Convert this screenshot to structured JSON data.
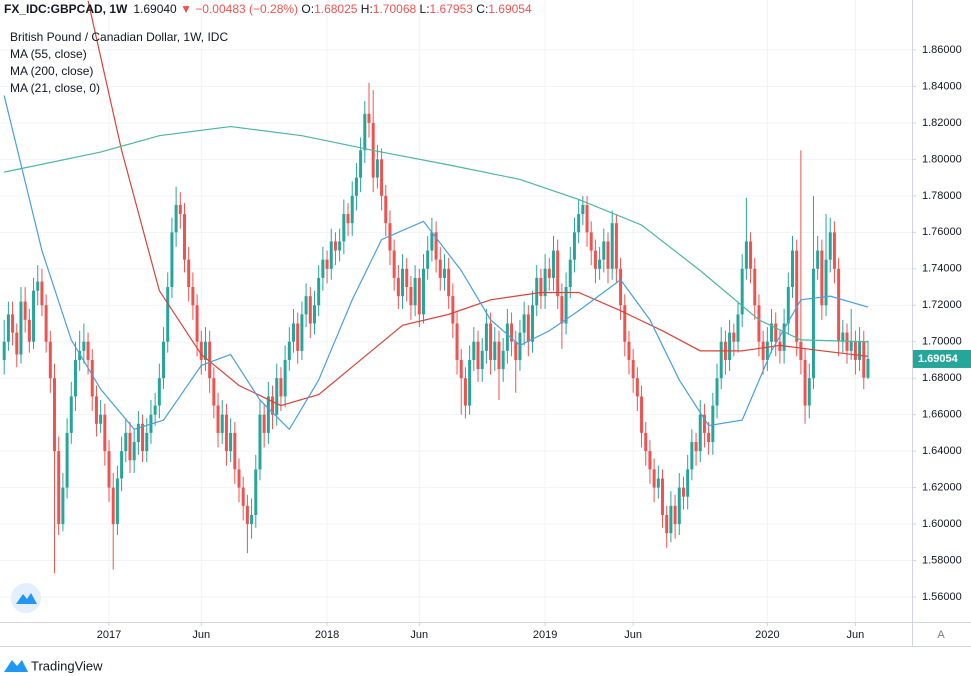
{
  "header": {
    "symbol": "FX_IDC:GBPCAD, 1W",
    "price": "1.69040",
    "change": "▼ −0.00483 (−0.28%)",
    "labels": [
      "O:",
      "H:",
      "L:",
      "C:"
    ],
    "axis_button": "A"
  },
  "footer": {
    "brand": "TradingView"
  },
  "chart_data": {
    "type": "candlestick",
    "title": "British Pound / Canadian Dollar, 1W, IDC",
    "up_color": "#26a69a",
    "down_color": "#ef5350",
    "xlim": [
      -1,
      216.5
    ],
    "xticks": [
      {
        "value": 25,
        "label": "2017"
      },
      {
        "value": 47,
        "label": "Jun"
      },
      {
        "value": 77,
        "label": "2018"
      },
      {
        "value": 99,
        "label": "Jun"
      },
      {
        "value": 129,
        "label": "2019"
      },
      {
        "value": 150,
        "label": "Jun"
      },
      {
        "value": 182,
        "label": "2020"
      },
      {
        "value": 203,
        "label": "Jun"
      }
    ],
    "ylim": [
      1.5463,
      1.8874
    ],
    "yticks": [
      {
        "value": 1.56,
        "label": "1.56000"
      },
      {
        "value": 1.58,
        "label": "1.58000"
      },
      {
        "value": 1.6,
        "label": "1.60000"
      },
      {
        "value": 1.62,
        "label": "1.62000"
      },
      {
        "value": 1.64,
        "label": "1.64000"
      },
      {
        "value": 1.66,
        "label": "1.66000"
      },
      {
        "value": 1.68,
        "label": "1.68000"
      },
      {
        "value": 1.7,
        "label": "1.70000"
      },
      {
        "value": 1.72,
        "label": "1.72000"
      },
      {
        "value": 1.74,
        "label": "1.74000"
      },
      {
        "value": 1.76,
        "label": "1.76000"
      },
      {
        "value": 1.78,
        "label": "1.78000"
      },
      {
        "value": 1.8,
        "label": "1.80000"
      },
      {
        "value": 1.82,
        "label": "1.82000"
      },
      {
        "value": 1.84,
        "label": "1.84000"
      },
      {
        "value": 1.86,
        "label": "1.86000"
      }
    ],
    "grid": true,
    "ohlc": [
      [
        1.69,
        1.712,
        1.682,
        1.7
      ],
      [
        1.7,
        1.722,
        1.695,
        1.715
      ],
      [
        1.715,
        1.722,
        1.698,
        1.705
      ],
      [
        1.705,
        1.71,
        1.686,
        1.693
      ],
      [
        1.693,
        1.73,
        1.688,
        1.722
      ],
      [
        1.722,
        1.73,
        1.705,
        1.712
      ],
      [
        1.712,
        1.718,
        1.694,
        1.7
      ],
      [
        1.7,
        1.735,
        1.696,
        1.728
      ],
      [
        1.728,
        1.742,
        1.72,
        1.733
      ],
      [
        1.733,
        1.74,
        1.714,
        1.72
      ],
      [
        1.72,
        1.726,
        1.694,
        1.7
      ],
      [
        1.7,
        1.706,
        1.672,
        1.68
      ],
      [
        1.68,
        1.688,
        1.573,
        1.64
      ],
      [
        1.64,
        1.648,
        1.594,
        1.6
      ],
      [
        1.6,
        1.628,
        1.596,
        1.62
      ],
      [
        1.62,
        1.658,
        1.614,
        1.65
      ],
      [
        1.65,
        1.678,
        1.644,
        1.67
      ],
      [
        1.67,
        1.7,
        1.662,
        1.69
      ],
      [
        1.69,
        1.706,
        1.684,
        1.695
      ],
      [
        1.695,
        1.71,
        1.688,
        1.7
      ],
      [
        1.7,
        1.705,
        1.682,
        1.69
      ],
      [
        1.69,
        1.696,
        1.662,
        1.67
      ],
      [
        1.67,
        1.676,
        1.648,
        1.655
      ],
      [
        1.655,
        1.668,
        1.65,
        1.66
      ],
      [
        1.66,
        1.666,
        1.632,
        1.64
      ],
      [
        1.64,
        1.646,
        1.612,
        1.62
      ],
      [
        1.62,
        1.628,
        1.575,
        1.6
      ],
      [
        1.6,
        1.632,
        1.594,
        1.625
      ],
      [
        1.625,
        1.648,
        1.618,
        1.64
      ],
      [
        1.64,
        1.658,
        1.634,
        1.65
      ],
      [
        1.65,
        1.656,
        1.628,
        1.635
      ],
      [
        1.635,
        1.652,
        1.628,
        1.645
      ],
      [
        1.645,
        1.662,
        1.638,
        1.655
      ],
      [
        1.655,
        1.66,
        1.634,
        1.64
      ],
      [
        1.64,
        1.658,
        1.634,
        1.65
      ],
      [
        1.65,
        1.668,
        1.644,
        1.66
      ],
      [
        1.66,
        1.672,
        1.654,
        1.665
      ],
      [
        1.665,
        1.688,
        1.658,
        1.68
      ],
      [
        1.68,
        1.708,
        1.674,
        1.7
      ],
      [
        1.7,
        1.738,
        1.694,
        1.73
      ],
      [
        1.73,
        1.768,
        1.724,
        1.76
      ],
      [
        1.76,
        1.785,
        1.752,
        1.775
      ],
      [
        1.775,
        1.782,
        1.762,
        1.77
      ],
      [
        1.77,
        1.776,
        1.738,
        1.745
      ],
      [
        1.745,
        1.752,
        1.722,
        1.73
      ],
      [
        1.73,
        1.738,
        1.712,
        1.72
      ],
      [
        1.72,
        1.726,
        1.692,
        1.7
      ],
      [
        1.7,
        1.706,
        1.682,
        1.69
      ],
      [
        1.69,
        1.708,
        1.684,
        1.7
      ],
      [
        1.7,
        1.706,
        1.672,
        1.68
      ],
      [
        1.68,
        1.686,
        1.658,
        1.665
      ],
      [
        1.665,
        1.672,
        1.642,
        1.65
      ],
      [
        1.65,
        1.668,
        1.644,
        1.66
      ],
      [
        1.66,
        1.666,
        1.632,
        1.64
      ],
      [
        1.64,
        1.658,
        1.634,
        1.65
      ],
      [
        1.65,
        1.656,
        1.622,
        1.63
      ],
      [
        1.63,
        1.636,
        1.612,
        1.62
      ],
      [
        1.62,
        1.626,
        1.602,
        1.61
      ],
      [
        1.61,
        1.616,
        1.584,
        1.6
      ],
      [
        1.6,
        1.614,
        1.592,
        1.605
      ],
      [
        1.605,
        1.638,
        1.598,
        1.63
      ],
      [
        1.63,
        1.668,
        1.624,
        1.66
      ],
      [
        1.66,
        1.666,
        1.642,
        1.65
      ],
      [
        1.65,
        1.678,
        1.644,
        1.67
      ],
      [
        1.67,
        1.676,
        1.652,
        1.66
      ],
      [
        1.66,
        1.688,
        1.654,
        1.68
      ],
      [
        1.68,
        1.686,
        1.662,
        1.67
      ],
      [
        1.67,
        1.698,
        1.664,
        1.69
      ],
      [
        1.69,
        1.708,
        1.684,
        1.7
      ],
      [
        1.7,
        1.718,
        1.694,
        1.71
      ],
      [
        1.71,
        1.716,
        1.688,
        1.695
      ],
      [
        1.695,
        1.722,
        1.69,
        1.715
      ],
      [
        1.715,
        1.732,
        1.708,
        1.725
      ],
      [
        1.725,
        1.73,
        1.702,
        1.71
      ],
      [
        1.71,
        1.728,
        1.704,
        1.72
      ],
      [
        1.72,
        1.742,
        1.714,
        1.735
      ],
      [
        1.735,
        1.752,
        1.728,
        1.745
      ],
      [
        1.745,
        1.75,
        1.732,
        1.74
      ],
      [
        1.74,
        1.762,
        1.734,
        1.755
      ],
      [
        1.755,
        1.76,
        1.742,
        1.75
      ],
      [
        1.75,
        1.762,
        1.744,
        1.755
      ],
      [
        1.755,
        1.778,
        1.748,
        1.77
      ],
      [
        1.77,
        1.776,
        1.758,
        1.765
      ],
      [
        1.765,
        1.788,
        1.758,
        1.78
      ],
      [
        1.78,
        1.798,
        1.772,
        1.79
      ],
      [
        1.79,
        1.812,
        1.782,
        1.805
      ],
      [
        1.805,
        1.832,
        1.798,
        1.825
      ],
      [
        1.825,
        1.842,
        1.812,
        1.82
      ],
      [
        1.82,
        1.838,
        1.782,
        1.79
      ],
      [
        1.79,
        1.808,
        1.784,
        1.8
      ],
      [
        1.8,
        1.806,
        1.772,
        1.78
      ],
      [
        1.78,
        1.786,
        1.758,
        1.765
      ],
      [
        1.765,
        1.772,
        1.742,
        1.75
      ],
      [
        1.75,
        1.756,
        1.728,
        1.735
      ],
      [
        1.735,
        1.742,
        1.718,
        1.725
      ],
      [
        1.725,
        1.748,
        1.718,
        1.74
      ],
      [
        1.74,
        1.746,
        1.722,
        1.73
      ],
      [
        1.73,
        1.736,
        1.712,
        1.72
      ],
      [
        1.72,
        1.742,
        1.714,
        1.735
      ],
      [
        1.735,
        1.74,
        1.708,
        1.715
      ],
      [
        1.715,
        1.748,
        1.71,
        1.74
      ],
      [
        1.74,
        1.758,
        1.734,
        1.75
      ],
      [
        1.75,
        1.768,
        1.744,
        1.76
      ],
      [
        1.76,
        1.766,
        1.738,
        1.745
      ],
      [
        1.745,
        1.752,
        1.728,
        1.735
      ],
      [
        1.735,
        1.748,
        1.728,
        1.74
      ],
      [
        1.74,
        1.746,
        1.718,
        1.725
      ],
      [
        1.725,
        1.732,
        1.702,
        1.71
      ],
      [
        1.71,
        1.716,
        1.682,
        1.69
      ],
      [
        1.69,
        1.696,
        1.66,
        1.68
      ],
      [
        1.68,
        1.686,
        1.658,
        1.665
      ],
      [
        1.665,
        1.698,
        1.66,
        1.69
      ],
      [
        1.69,
        1.708,
        1.684,
        1.7
      ],
      [
        1.7,
        1.706,
        1.678,
        1.685
      ],
      [
        1.685,
        1.702,
        1.678,
        1.695
      ],
      [
        1.695,
        1.718,
        1.688,
        1.71
      ],
      [
        1.71,
        1.716,
        1.682,
        1.69
      ],
      [
        1.69,
        1.708,
        1.684,
        1.7
      ],
      [
        1.7,
        1.706,
        1.668,
        1.685
      ],
      [
        1.685,
        1.702,
        1.678,
        1.695
      ],
      [
        1.695,
        1.718,
        1.688,
        1.71
      ],
      [
        1.71,
        1.716,
        1.692,
        1.7
      ],
      [
        1.7,
        1.706,
        1.672,
        1.69
      ],
      [
        1.69,
        1.712,
        1.684,
        1.705
      ],
      [
        1.705,
        1.722,
        1.698,
        1.715
      ],
      [
        1.715,
        1.72,
        1.692,
        1.7
      ],
      [
        1.7,
        1.728,
        1.694,
        1.72
      ],
      [
        1.72,
        1.742,
        1.714,
        1.735
      ],
      [
        1.735,
        1.74,
        1.718,
        1.725
      ],
      [
        1.725,
        1.748,
        1.718,
        1.74
      ],
      [
        1.74,
        1.746,
        1.728,
        1.735
      ],
      [
        1.735,
        1.758,
        1.728,
        1.75
      ],
      [
        1.75,
        1.756,
        1.718,
        1.725
      ],
      [
        1.725,
        1.732,
        1.696,
        1.71
      ],
      [
        1.71,
        1.738,
        1.704,
        1.73
      ],
      [
        1.73,
        1.752,
        1.724,
        1.745
      ],
      [
        1.745,
        1.768,
        1.738,
        1.76
      ],
      [
        1.76,
        1.778,
        1.754,
        1.77
      ],
      [
        1.77,
        1.78,
        1.764,
        1.775
      ],
      [
        1.775,
        1.78,
        1.752,
        1.76
      ],
      [
        1.76,
        1.766,
        1.742,
        1.75
      ],
      [
        1.75,
        1.756,
        1.732,
        1.74
      ],
      [
        1.74,
        1.752,
        1.734,
        1.745
      ],
      [
        1.745,
        1.762,
        1.738,
        1.755
      ],
      [
        1.755,
        1.76,
        1.732,
        1.74
      ],
      [
        1.74,
        1.772,
        1.734,
        1.765
      ],
      [
        1.765,
        1.77,
        1.732,
        1.74
      ],
      [
        1.74,
        1.746,
        1.712,
        1.72
      ],
      [
        1.72,
        1.726,
        1.692,
        1.7
      ],
      [
        1.7,
        1.706,
        1.682,
        1.69
      ],
      [
        1.69,
        1.696,
        1.672,
        1.68
      ],
      [
        1.68,
        1.686,
        1.662,
        1.67
      ],
      [
        1.67,
        1.676,
        1.642,
        1.65
      ],
      [
        1.65,
        1.656,
        1.632,
        1.64
      ],
      [
        1.64,
        1.646,
        1.622,
        1.63
      ],
      [
        1.63,
        1.636,
        1.612,
        1.62
      ],
      [
        1.62,
        1.632,
        1.614,
        1.625
      ],
      [
        1.625,
        1.63,
        1.598,
        1.605
      ],
      [
        1.605,
        1.61,
        1.587,
        1.595
      ],
      [
        1.595,
        1.618,
        1.59,
        1.61
      ],
      [
        1.61,
        1.616,
        1.592,
        1.6
      ],
      [
        1.6,
        1.628,
        1.594,
        1.62
      ],
      [
        1.62,
        1.626,
        1.608,
        1.615
      ],
      [
        1.615,
        1.638,
        1.608,
        1.63
      ],
      [
        1.63,
        1.652,
        1.624,
        1.645
      ],
      [
        1.645,
        1.65,
        1.632,
        1.64
      ],
      [
        1.64,
        1.668,
        1.634,
        1.66
      ],
      [
        1.66,
        1.666,
        1.642,
        1.65
      ],
      [
        1.65,
        1.656,
        1.638,
        1.645
      ],
      [
        1.645,
        1.672,
        1.638,
        1.665
      ],
      [
        1.665,
        1.688,
        1.658,
        1.68
      ],
      [
        1.68,
        1.708,
        1.674,
        1.7
      ],
      [
        1.7,
        1.706,
        1.682,
        1.69
      ],
      [
        1.69,
        1.712,
        1.684,
        1.705
      ],
      [
        1.705,
        1.71,
        1.692,
        1.7
      ],
      [
        1.7,
        1.722,
        1.694,
        1.715
      ],
      [
        1.715,
        1.748,
        1.708,
        1.74
      ],
      [
        1.74,
        1.779,
        1.734,
        1.755
      ],
      [
        1.755,
        1.76,
        1.732,
        1.74
      ],
      [
        1.74,
        1.746,
        1.712,
        1.72
      ],
      [
        1.72,
        1.726,
        1.692,
        1.7
      ],
      [
        1.7,
        1.706,
        1.682,
        1.69
      ],
      [
        1.69,
        1.708,
        1.684,
        1.7
      ],
      [
        1.7,
        1.718,
        1.694,
        1.71
      ],
      [
        1.71,
        1.716,
        1.692,
        1.7
      ],
      [
        1.7,
        1.706,
        1.688,
        1.695
      ],
      [
        1.695,
        1.718,
        1.688,
        1.71
      ],
      [
        1.71,
        1.738,
        1.704,
        1.73
      ],
      [
        1.73,
        1.758,
        1.724,
        1.75
      ],
      [
        1.75,
        1.756,
        1.692,
        1.7
      ],
      [
        1.7,
        1.805,
        1.682,
        1.69
      ],
      [
        1.69,
        1.696,
        1.655,
        1.665
      ],
      [
        1.665,
        1.688,
        1.658,
        1.68
      ],
      [
        1.68,
        1.78,
        1.674,
        1.74
      ],
      [
        1.74,
        1.758,
        1.734,
        1.75
      ],
      [
        1.75,
        1.756,
        1.712,
        1.72
      ],
      [
        1.72,
        1.77,
        1.714,
        1.745
      ],
      [
        1.745,
        1.768,
        1.738,
        1.76
      ],
      [
        1.76,
        1.766,
        1.732,
        1.74
      ],
      [
        1.74,
        1.746,
        1.692,
        1.7
      ],
      [
        1.7,
        1.712,
        1.694,
        1.705
      ],
      [
        1.705,
        1.71,
        1.688,
        1.695
      ],
      [
        1.695,
        1.718,
        1.69,
        1.7
      ],
      [
        1.7,
        1.706,
        1.682,
        1.69
      ],
      [
        1.69,
        1.708,
        1.684,
        1.7
      ],
      [
        1.7,
        1.706,
        1.674,
        1.68025
      ],
      [
        1.68025,
        1.70068,
        1.67953,
        1.69054
      ]
    ],
    "series": [
      {
        "name": "MA (55, close)",
        "color": "#d9433a",
        "x": [
          20,
          28,
          37,
          47,
          56,
          66,
          75,
          85,
          95,
          106,
          116,
          128,
          137,
          147,
          157,
          166,
          176,
          185,
          195,
          206
        ],
        "values": [
          1.887,
          1.805,
          1.728,
          1.693,
          1.676,
          1.665,
          1.671,
          1.69,
          1.709,
          1.715,
          1.723,
          1.727,
          1.727,
          1.717,
          1.706,
          1.695,
          1.695,
          1.698,
          1.695,
          1.692
        ]
      },
      {
        "name": "MA (200, close)",
        "color": "#4db6a0",
        "x": [
          0,
          23,
          37,
          54,
          71,
          90,
          106,
          123,
          137,
          152,
          166,
          180,
          190,
          206
        ],
        "values": [
          1.793,
          1.804,
          1.813,
          1.818,
          1.813,
          1.804,
          1.797,
          1.789,
          1.778,
          1.764,
          1.739,
          1.712,
          1.701,
          1.7
        ]
      },
      {
        "name": "MA (21, close, 0)",
        "color": "#4a9fdc",
        "x": [
          0,
          9,
          16,
          23,
          31,
          38,
          47,
          54,
          61,
          68,
          75,
          83,
          90,
          100,
          109,
          116,
          123,
          130,
          137,
          147,
          154,
          161,
          168,
          176,
          183,
          190,
          197,
          206
        ],
        "values": [
          1.835,
          1.75,
          1.701,
          1.674,
          1.652,
          1.657,
          1.687,
          1.693,
          1.668,
          1.652,
          1.679,
          1.723,
          1.756,
          1.766,
          1.739,
          1.712,
          1.698,
          1.706,
          1.717,
          1.734,
          1.712,
          1.679,
          1.654,
          1.657,
          1.695,
          1.723,
          1.725,
          1.719
        ]
      }
    ]
  }
}
